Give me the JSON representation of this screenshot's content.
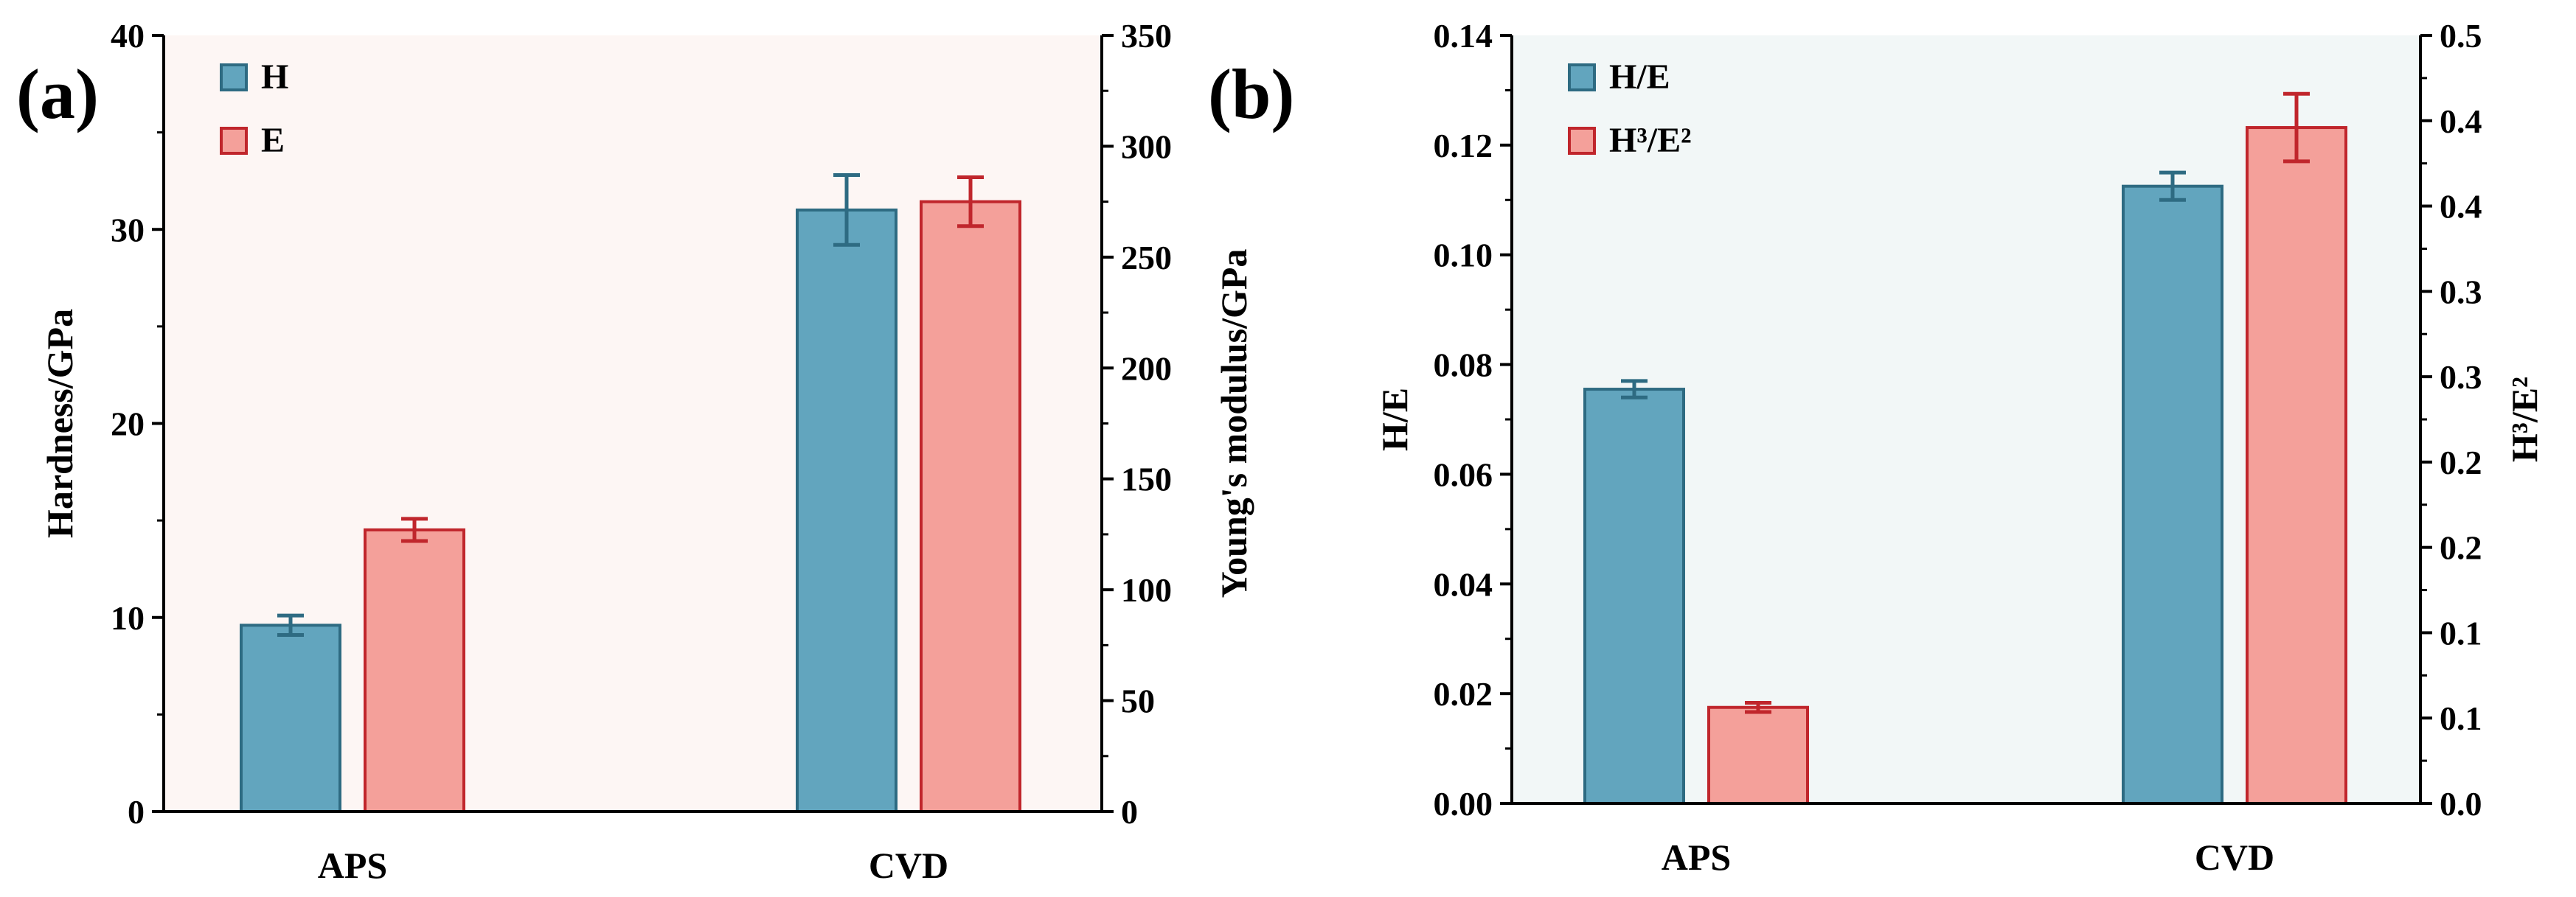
{
  "colors": {
    "blue_fill": "#62a5be",
    "blue_stroke": "#2e6b82",
    "red_fill": "#f4a09a",
    "red_stroke": "#c0262c",
    "panel_a_bg": "#fdf6f4",
    "panel_b_bg": "#f2f7f7"
  },
  "chart_data": [
    {
      "panel_label": "(a)",
      "type": "bar",
      "categories": [
        "APS",
        "CVD"
      ],
      "ylabel": "Hardness/GPa",
      "ylabel_right": "Young's modulus/GPa",
      "ylim": [
        0,
        40
      ],
      "ylim_right": [
        0,
        350
      ],
      "yticks": [
        "0",
        "10",
        "20",
        "30",
        "40"
      ],
      "yticks_right": [
        "0",
        "50",
        "100",
        "150",
        "200",
        "250",
        "300",
        "350"
      ],
      "grid": false,
      "legend": "top-left",
      "series": [
        {
          "name": "H",
          "axis": "left",
          "values": [
            9.6,
            31.0
          ],
          "errors": [
            0.5,
            1.8
          ]
        },
        {
          "name": "E",
          "axis": "right",
          "values": [
            127,
            275
          ],
          "errors": [
            5,
            11
          ]
        }
      ]
    },
    {
      "panel_label": "(b)",
      "type": "bar",
      "categories": [
        "APS",
        "CVD"
      ],
      "ylabel": "H/E",
      "ylabel_right": "H³/E²",
      "ylim": [
        0,
        0.14
      ],
      "ylim_right": [
        0,
        0.5
      ],
      "yticks": [
        "0.00",
        "0.02",
        "0.04",
        "0.06",
        "0.08",
        "0.10",
        "0.12",
        "0.14"
      ],
      "yticks_right": [
        "0.0",
        "0.1",
        "0.1",
        "0.2",
        "0.2",
        "0.3",
        "0.3",
        "0.4",
        "0.4",
        "0.5"
      ],
      "grid": false,
      "legend": "top-left",
      "series": [
        {
          "name": "H/E",
          "axis": "left",
          "values": [
            0.0755,
            0.1125
          ],
          "errors": [
            0.0015,
            0.0025
          ]
        },
        {
          "name": "H³/E²",
          "axis": "right",
          "values": [
            0.0625,
            0.44
          ],
          "errors": [
            0.003,
            0.022
          ]
        }
      ]
    }
  ]
}
